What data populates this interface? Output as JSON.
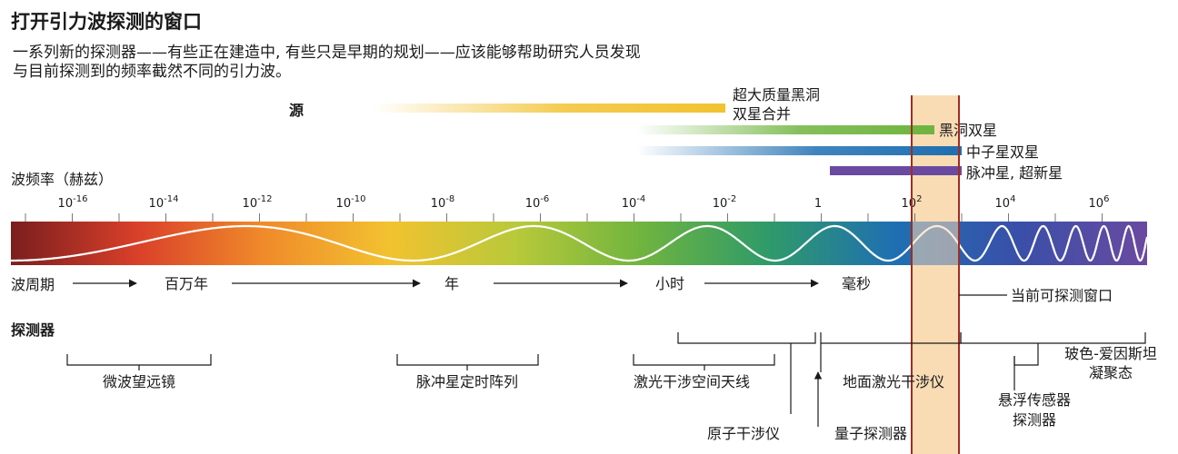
{
  "title": "打开引力波探测的窗口",
  "subtitle": "一系列新的探测器——有些正在建造中, 有些只是早期的规划——应该能够帮助研究人员发现与目前探测到的频率截然不同的引力波。",
  "sources_label": "源",
  "frequency_label": "波频率（赫兹）",
  "period_label": "波周期",
  "detectors_label": "探测器",
  "current_window_label": "当前可探测窗口",
  "frequency_ticks": [
    "10",
    "10",
    "10",
    "10",
    "10",
    "10",
    "10",
    "10",
    "1",
    "10",
    "10",
    "10"
  ],
  "frequency_exponents": [
    "-16",
    "-14",
    "-12",
    "-10",
    "-8",
    "-6",
    "-4",
    "-2",
    "",
    "2",
    "4",
    "6"
  ],
  "period_marks": [
    "百万年",
    "年",
    "小时",
    "毫秒"
  ],
  "sources": [
    {
      "label": "超大质量黑洞\n双星合并",
      "color": "#f2c230"
    },
    {
      "label": "黑洞双星",
      "color": "#6fb43f"
    },
    {
      "label": "中子星双星",
      "color": "#1f6fb2"
    },
    {
      "label": "脉冲星, 超新星",
      "color": "#6a4aa0"
    }
  ],
  "detectors": [
    {
      "label": "微波望远镜"
    },
    {
      "label": "脉冲星定时阵列"
    },
    {
      "label": "激光干涉空间天线"
    },
    {
      "label": "原子干涉仪"
    },
    {
      "label": "地面激光干涉仪"
    },
    {
      "label": "量子探测器"
    },
    {
      "label": "悬浮传感器\n探测器"
    },
    {
      "label": "玻色-爱因斯坦\n凝聚态"
    }
  ],
  "colors": {
    "spectrum": [
      "#7a1e1e",
      "#d9402a",
      "#f08a2a",
      "#f2c230",
      "#b8c93a",
      "#6fb43f",
      "#2f9a6a",
      "#1f6fb2",
      "#3a4fa8",
      "#6a4aa0"
    ],
    "window_fill": "#f9dcb4",
    "window_border": "#a02c22"
  }
}
